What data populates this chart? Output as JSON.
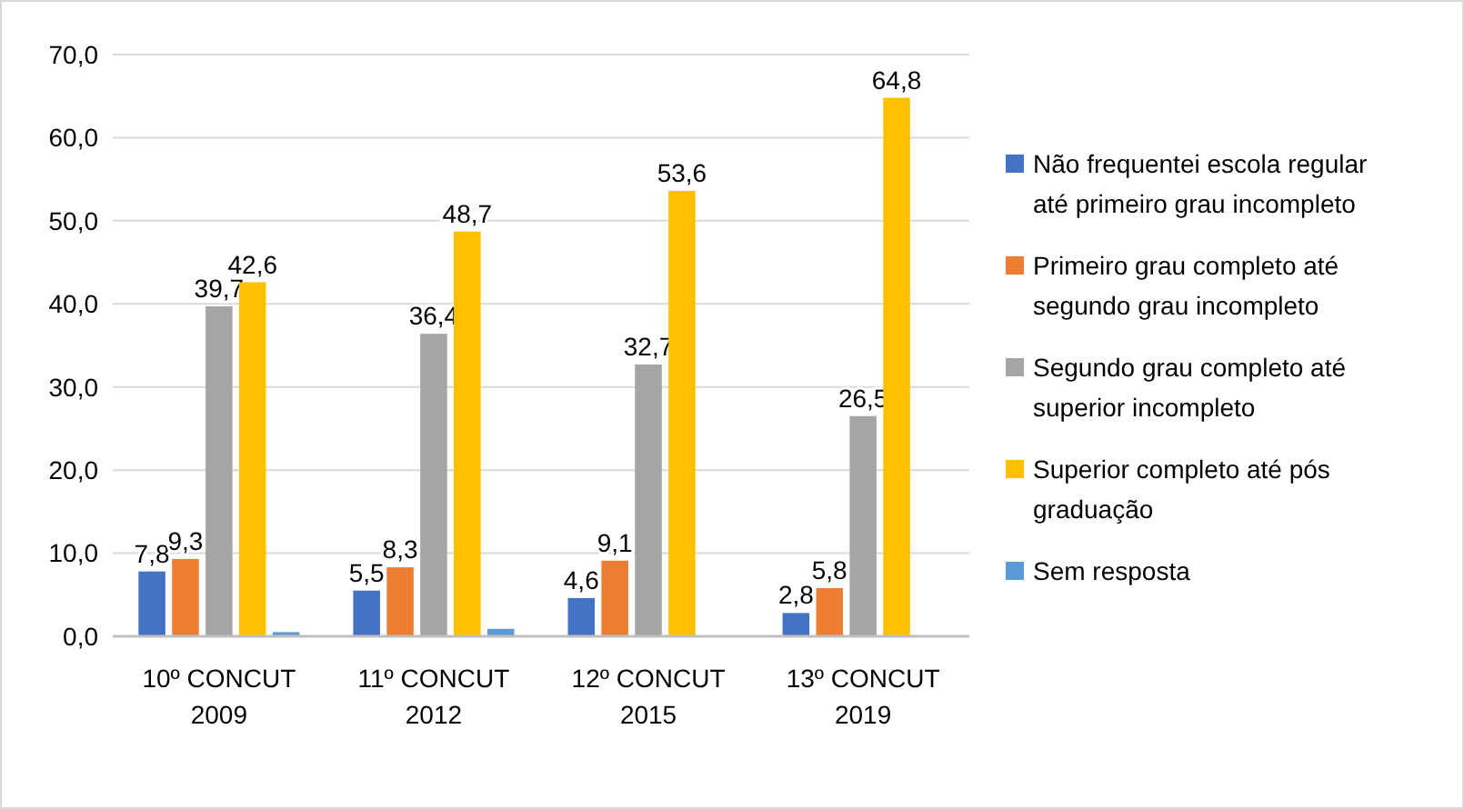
{
  "chart_data": {
    "type": "bar",
    "categories": [
      "10º CONCUT 2009",
      "11º CONCUT 2012",
      "12º CONCUT 2015",
      "13º CONCUT 2019"
    ],
    "series": [
      {
        "name": "Não frequentei escola regular até primeiro grau incompleto",
        "color": "#4472c4",
        "values": [
          7.8,
          5.5,
          4.6,
          2.8
        ],
        "value_labels": [
          "7,8",
          "5,5",
          "4,6",
          "2,8"
        ]
      },
      {
        "name": "Primeiro grau completo até segundo grau incompleto",
        "color": "#ed7d31",
        "values": [
          9.3,
          8.3,
          9.1,
          5.8
        ],
        "value_labels": [
          "9,3",
          "8,3",
          "9,1",
          "5,8"
        ]
      },
      {
        "name": "Segundo grau completo até superior incompleto",
        "color": "#a5a5a5",
        "values": [
          39.7,
          36.4,
          32.7,
          26.5
        ],
        "value_labels": [
          "39,7",
          "36,4",
          "32,7",
          "26,5"
        ]
      },
      {
        "name": "Superior completo até pós graduação",
        "color": "#ffc000",
        "values": [
          42.6,
          48.7,
          53.6,
          64.8
        ],
        "value_labels": [
          "42,6",
          "48,7",
          "53,6",
          "64,8"
        ]
      },
      {
        "name": "Sem resposta",
        "color": "#5b9bd5",
        "values": [
          0.5,
          0.9,
          null,
          null
        ],
        "value_labels": [
          null,
          null,
          null,
          null
        ]
      }
    ],
    "ylim": [
      0,
      70
    ],
    "yticks": [
      {
        "value": 0,
        "label": "0,0"
      },
      {
        "value": 10,
        "label": "10,0"
      },
      {
        "value": 20,
        "label": "20,0"
      },
      {
        "value": 30,
        "label": "30,0"
      },
      {
        "value": 40,
        "label": "40,0"
      },
      {
        "value": 50,
        "label": "50,0"
      },
      {
        "value": 60,
        "label": "60,0"
      },
      {
        "value": 70,
        "label": "70,0"
      }
    ],
    "grid": "y",
    "legend": "right"
  }
}
